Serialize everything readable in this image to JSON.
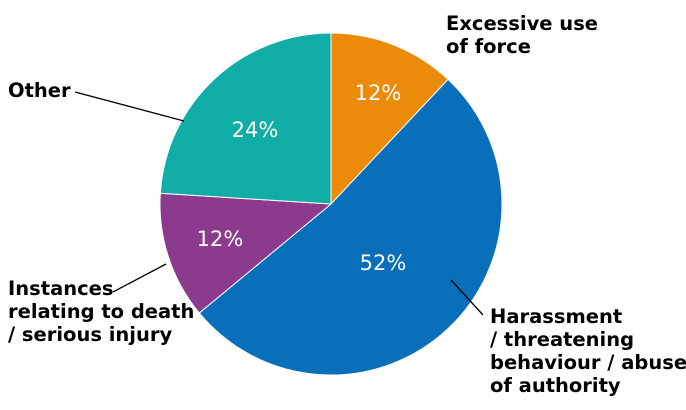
{
  "chart_data": {
    "type": "pie",
    "title": "",
    "start_angle_deg": 0,
    "direction": "clockwise",
    "slices": [
      {
        "label_lines": [
          "Excessive use",
          "of force"
        ],
        "value": 12,
        "value_label": "12%",
        "color": "#ec8a0a"
      },
      {
        "label_lines": [
          "Harassment",
          "/ threatening",
          "behaviour / abuse",
          "of authority"
        ],
        "value": 52,
        "value_label": "52%",
        "color": "#0a6fba"
      },
      {
        "label_lines": [
          "Instances",
          "relating to death",
          "/ serious injury"
        ],
        "value": 12,
        "value_label": "12%",
        "color": "#8b3a8d"
      },
      {
        "label_lines": [
          "Other"
        ],
        "value": 24,
        "value_label": "24%",
        "color": "#10ada7"
      }
    ]
  }
}
